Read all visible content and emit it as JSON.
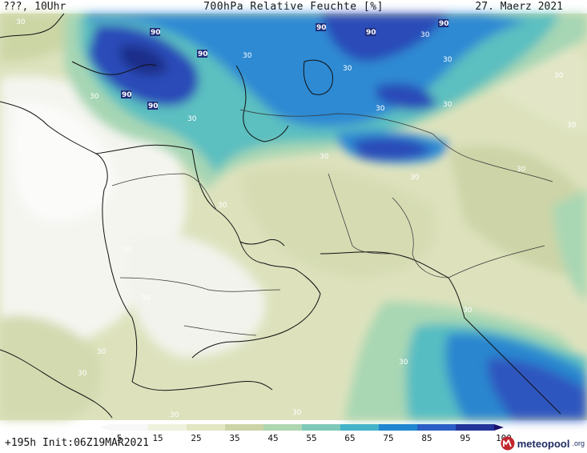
{
  "header": {
    "left": "???, 10Uhr",
    "title": "700hPa Relative Feuchte [%]",
    "date": "27. Maerz 2021"
  },
  "footer": {
    "run_info": "+195h Init:06Z19MAR2021"
  },
  "branding": {
    "name": "meteopool",
    "tld": ".org"
  },
  "legend": {
    "ticks": [
      "5",
      "15",
      "25",
      "35",
      "45",
      "55",
      "65",
      "75",
      "85",
      "95",
      "100"
    ],
    "colors": [
      "#f7f7f7",
      "#eef1dd",
      "#e2e6c3",
      "#ccd3a6",
      "#aed6b1",
      "#7ec9b7",
      "#43b3c9",
      "#1f86d0",
      "#2a5ec4",
      "#22339a",
      "#1a0e6a"
    ]
  },
  "contour_labels": [
    "30",
    "90",
    "90",
    "90",
    "90",
    "90",
    "90",
    "90",
    "30",
    "30",
    "30",
    "30",
    "30",
    "30",
    "30",
    "30",
    "30",
    "30",
    "30",
    "30",
    "30",
    "30",
    "30",
    "30",
    "30",
    "30",
    "30",
    "30",
    "30",
    "30"
  ]
}
